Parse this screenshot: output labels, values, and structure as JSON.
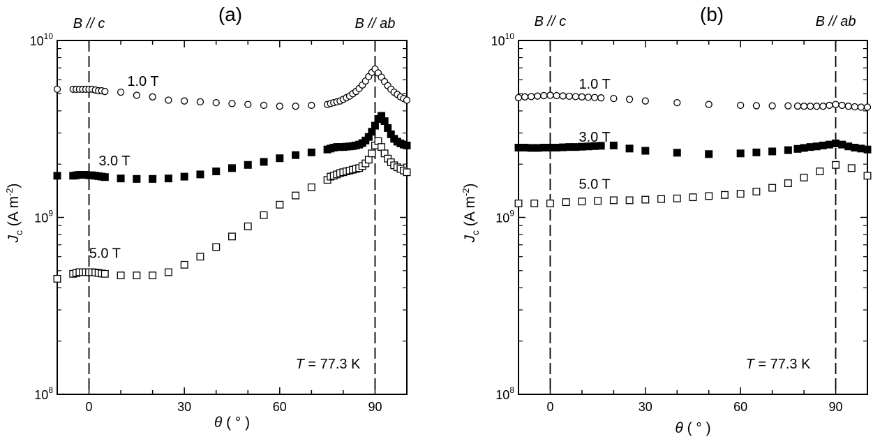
{
  "chart_data": [
    {
      "type": "scatter",
      "title": "(a)",
      "xlabel": "θ ( ° )",
      "ylabel": "Jc (A m-2)",
      "ylabel_main": "J",
      "ylabel_sub": "c",
      "ylabel_unit": " (A m",
      "ylabel_sup": "-2",
      "ylabel_close": ")",
      "xlabel_symbol": "θ",
      "xlabel_unit": " ( ° )",
      "xlim": [
        -10,
        100
      ],
      "ylim": [
        100000000.0,
        10000000000.0
      ],
      "yscale": "log",
      "xticks": [
        0,
        30,
        60,
        90
      ],
      "xtick_labels": [
        "0",
        "30",
        "60",
        "90"
      ],
      "ytick_labels": [
        {
          "base": "10",
          "exp": "8"
        },
        {
          "base": "10",
          "exp": "9"
        },
        {
          "base": "10",
          "exp": "10"
        }
      ],
      "orientation_labels": [
        {
          "text": "B // c",
          "x": 0
        },
        {
          "text": "B // ab",
          "x": 90
        }
      ],
      "vlines": [
        0,
        90
      ],
      "annotation": {
        "prefix": "T",
        "rest": " = 77.3 K"
      },
      "series": [
        {
          "name": "1.0 T",
          "marker": "circle-open",
          "label_x": 17,
          "label_y": 5900000000.0,
          "x": [
            -10,
            -5,
            -4,
            -3,
            -2,
            -1,
            0,
            1,
            2,
            3,
            4,
            5,
            10,
            15,
            20,
            25,
            30,
            35,
            40,
            45,
            50,
            55,
            60,
            65,
            70,
            75,
            76,
            77,
            78,
            79,
            80,
            81,
            82,
            83,
            84,
            85,
            86,
            87,
            88,
            89,
            90,
            91,
            92,
            93,
            94,
            95,
            96,
            97,
            98,
            99,
            100
          ],
          "y": [
            5300000000.0,
            5300000000.0,
            5300000000.0,
            5300000000.0,
            5300000000.0,
            5300000000.0,
            5300000000.0,
            5300000000.0,
            5250000000.0,
            5200000000.0,
            5200000000.0,
            5150000000.0,
            5100000000.0,
            4900000000.0,
            4800000000.0,
            4600000000.0,
            4550000000.0,
            4500000000.0,
            4450000000.0,
            4400000000.0,
            4350000000.0,
            4300000000.0,
            4250000000.0,
            4250000000.0,
            4300000000.0,
            4350000000.0,
            4400000000.0,
            4450000000.0,
            4500000000.0,
            4550000000.0,
            4650000000.0,
            4750000000.0,
            4850000000.0,
            5000000000.0,
            5150000000.0,
            5350000000.0,
            5600000000.0,
            5900000000.0,
            6250000000.0,
            6600000000.0,
            6900000000.0,
            6550000000.0,
            6200000000.0,
            5850000000.0,
            5550000000.0,
            5300000000.0,
            5100000000.0,
            4950000000.0,
            4800000000.0,
            4700000000.0,
            4600000000.0
          ]
        },
        {
          "name": "3.0 T",
          "marker": "square-filled",
          "label_x": 8,
          "label_y": 2100000000.0,
          "x": [
            -10,
            -5,
            -4,
            -3,
            -2,
            -1,
            0,
            1,
            2,
            3,
            4,
            5,
            10,
            15,
            20,
            25,
            30,
            35,
            40,
            45,
            50,
            55,
            60,
            65,
            70,
            75,
            76,
            77,
            78,
            79,
            80,
            81,
            82,
            83,
            84,
            85,
            86,
            87,
            88,
            89,
            90,
            91,
            92,
            93,
            94,
            95,
            96,
            97,
            98,
            99,
            100
          ],
          "y": [
            1720000000.0,
            1720000000.0,
            1730000000.0,
            1740000000.0,
            1740000000.0,
            1740000000.0,
            1730000000.0,
            1730000000.0,
            1720000000.0,
            1710000000.0,
            1700000000.0,
            1690000000.0,
            1660000000.0,
            1650000000.0,
            1650000000.0,
            1660000000.0,
            1700000000.0,
            1750000000.0,
            1820000000.0,
            1900000000.0,
            1980000000.0,
            2060000000.0,
            2160000000.0,
            2250000000.0,
            2330000000.0,
            2420000000.0,
            2450000000.0,
            2480000000.0,
            2500000000.0,
            2500000000.0,
            2500000000.0,
            2510000000.0,
            2520000000.0,
            2530000000.0,
            2550000000.0,
            2580000000.0,
            2630000000.0,
            2720000000.0,
            2850000000.0,
            3050000000.0,
            3300000000.0,
            3600000000.0,
            3750000000.0,
            3500000000.0,
            3200000000.0,
            2950000000.0,
            2780000000.0,
            2680000000.0,
            2620000000.0,
            2580000000.0,
            2550000000.0
          ]
        },
        {
          "name": "5.0 T",
          "marker": "square-open",
          "label_x": 5,
          "label_y": 630000000.0,
          "x": [
            -10,
            -5,
            -4,
            -3,
            -2,
            -1,
            0,
            1,
            2,
            3,
            4,
            5,
            10,
            15,
            20,
            25,
            30,
            35,
            40,
            45,
            50,
            55,
            60,
            65,
            70,
            75,
            76,
            77,
            78,
            79,
            80,
            81,
            82,
            83,
            84,
            85,
            86,
            87,
            88,
            89,
            90,
            91,
            92,
            93,
            94,
            95,
            96,
            97,
            98,
            99,
            100
          ],
          "y": [
            450000000.0,
            480000000.0,
            485000000.0,
            490000000.0,
            490000000.0,
            490000000.0,
            490000000.0,
            490000000.0,
            488000000.0,
            485000000.0,
            482000000.0,
            480000000.0,
            470000000.0,
            470000000.0,
            470000000.0,
            490000000.0,
            540000000.0,
            600000000.0,
            680000000.0,
            780000000.0,
            890000000.0,
            1030000000.0,
            1180000000.0,
            1330000000.0,
            1480000000.0,
            1630000000.0,
            1700000000.0,
            1720000000.0,
            1750000000.0,
            1780000000.0,
            1800000000.0,
            1820000000.0,
            1840000000.0,
            1860000000.0,
            1880000000.0,
            1900000000.0,
            1950000000.0,
            2020000000.0,
            2120000000.0,
            2300000000.0,
            2550000000.0,
            2700000000.0,
            2500000000.0,
            2300000000.0,
            2150000000.0,
            2050000000.0,
            1970000000.0,
            1920000000.0,
            1880000000.0,
            1840000000.0,
            1800000000.0
          ]
        }
      ]
    },
    {
      "type": "scatter",
      "title": "(b)",
      "xlabel": "θ ( ° )",
      "ylabel": "Jc (A m-2)",
      "ylabel_main": "J",
      "ylabel_sub": "c",
      "ylabel_unit": " (A m",
      "ylabel_sup": "-2",
      "ylabel_close": ")",
      "xlabel_symbol": "θ",
      "xlabel_unit": " ( ° )",
      "xlim": [
        -10,
        100
      ],
      "ylim": [
        100000000.0,
        10000000000.0
      ],
      "yscale": "log",
      "xticks": [
        0,
        30,
        60,
        90
      ],
      "xtick_labels": [
        "0",
        "30",
        "60",
        "90"
      ],
      "ytick_labels": [
        {
          "base": "10",
          "exp": "8"
        },
        {
          "base": "10",
          "exp": "9"
        },
        {
          "base": "10",
          "exp": "10"
        }
      ],
      "orientation_labels": [
        {
          "text": "B // c",
          "x": 0
        },
        {
          "text": "B // ab",
          "x": 90
        }
      ],
      "vlines": [
        0,
        90
      ],
      "annotation": {
        "prefix": "T",
        "rest": " = 77.3 K"
      },
      "series": [
        {
          "name": "1.0 T",
          "marker": "circle-open",
          "label_x": 14,
          "label_y": 5700000000.0,
          "x": [
            -10,
            -8,
            -6,
            -4,
            -2,
            0,
            2,
            4,
            6,
            8,
            10,
            12,
            14,
            16,
            20,
            25,
            30,
            40,
            50,
            60,
            65,
            70,
            75,
            78,
            80,
            82,
            84,
            86,
            88,
            90,
            92,
            94,
            96,
            98,
            100
          ],
          "y": [
            4750000000.0,
            4800000000.0,
            4820000000.0,
            4850000000.0,
            4880000000.0,
            4900000000.0,
            4880000000.0,
            4860000000.0,
            4840000000.0,
            4820000000.0,
            4800000000.0,
            4780000000.0,
            4760000000.0,
            4740000000.0,
            4700000000.0,
            4650000000.0,
            4550000000.0,
            4450000000.0,
            4350000000.0,
            4300000000.0,
            4280000000.0,
            4270000000.0,
            4270000000.0,
            4260000000.0,
            4250000000.0,
            4250000000.0,
            4250000000.0,
            4250000000.0,
            4300000000.0,
            4350000000.0,
            4300000000.0,
            4250000000.0,
            4220000000.0,
            4200000000.0,
            4200000000.0
          ]
        },
        {
          "name": "3.0 T",
          "marker": "square-filled",
          "label_x": 14,
          "label_y": 2850000000.0,
          "x": [
            -10,
            -8,
            -6,
            -4,
            -2,
            0,
            2,
            4,
            6,
            8,
            10,
            12,
            14,
            16,
            20,
            25,
            30,
            40,
            50,
            60,
            65,
            70,
            75,
            78,
            80,
            82,
            84,
            86,
            88,
            90,
            92,
            94,
            96,
            98,
            100
          ],
          "y": [
            2480000000.0,
            2480000000.0,
            2470000000.0,
            2470000000.0,
            2480000000.0,
            2480000000.0,
            2480000000.0,
            2490000000.0,
            2500000000.0,
            2500000000.0,
            2510000000.0,
            2520000000.0,
            2530000000.0,
            2540000000.0,
            2550000000.0,
            2450000000.0,
            2380000000.0,
            2320000000.0,
            2280000000.0,
            2300000000.0,
            2330000000.0,
            2360000000.0,
            2400000000.0,
            2440000000.0,
            2470000000.0,
            2500000000.0,
            2520000000.0,
            2550000000.0,
            2580000000.0,
            2620000000.0,
            2580000000.0,
            2520000000.0,
            2480000000.0,
            2450000000.0,
            2420000000.0
          ]
        },
        {
          "name": "5.0 T",
          "marker": "square-open",
          "label_x": 14,
          "label_y": 1550000000.0,
          "x": [
            -10,
            -5,
            0,
            5,
            10,
            15,
            20,
            25,
            30,
            35,
            40,
            45,
            50,
            55,
            60,
            65,
            70,
            75,
            80,
            85,
            90,
            95,
            100
          ],
          "y": [
            1200000000.0,
            1200000000.0,
            1200000000.0,
            1220000000.0,
            1230000000.0,
            1240000000.0,
            1250000000.0,
            1250000000.0,
            1260000000.0,
            1270000000.0,
            1280000000.0,
            1300000000.0,
            1320000000.0,
            1340000000.0,
            1360000000.0,
            1400000000.0,
            1470000000.0,
            1560000000.0,
            1680000000.0,
            1820000000.0,
            1980000000.0,
            1900000000.0,
            1720000000.0
          ]
        }
      ]
    }
  ]
}
